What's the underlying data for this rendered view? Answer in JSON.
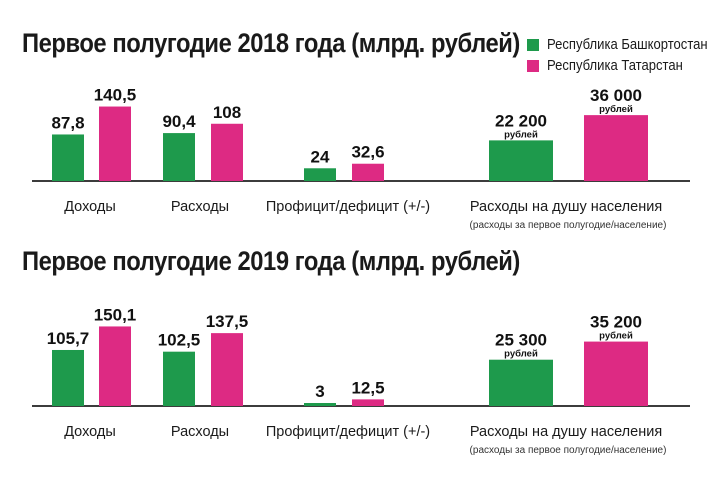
{
  "colors": {
    "bashkortostan": "#1e9a4c",
    "tatarstan": "#dd2a83",
    "axis": "#3c3c3c"
  },
  "legend": [
    {
      "label": "Республика Башкортостан",
      "color": "#1e9a4c"
    },
    {
      "label": "Республика Татарстан",
      "color": "#dd2a83"
    }
  ],
  "chart_data": [
    {
      "type": "bar",
      "title": "Первое полугодие 2018 года (млрд. рублей)",
      "categories": [
        "Доходы",
        "Расходы",
        "Профицит/дефицит (+/-)",
        "Расходы на душу населения"
      ],
      "category_notes": [
        "",
        "",
        "",
        "(расходы за первое полугодие/население)"
      ],
      "series": [
        {
          "name": "Республика Башкортостан",
          "values": [
            87.8,
            90.4,
            24,
            22200
          ],
          "labels": [
            "87,8",
            "90,4",
            "24",
            "22 200"
          ],
          "units": [
            "",
            "",
            "",
            "рублей"
          ]
        },
        {
          "name": "Республика Татарстан",
          "values": [
            140.5,
            108,
            32.6,
            36000
          ],
          "labels": [
            "140,5",
            "108",
            "32,6",
            "36 000"
          ],
          "units": [
            "",
            "",
            "",
            "рублей"
          ]
        }
      ]
    },
    {
      "type": "bar",
      "title": "Первое полугодие 2019 года (млрд. рублей)",
      "categories": [
        "Доходы",
        "Расходы",
        "Профицит/дефицит (+/-)",
        "Расходы на душу населения"
      ],
      "category_notes": [
        "",
        "",
        "",
        "(расходы за первое полугодие/население)"
      ],
      "series": [
        {
          "name": "Республика Башкортостан",
          "values": [
            105.7,
            102.5,
            3,
            25300
          ],
          "labels": [
            "105,7",
            "102,5",
            "3",
            "25 300"
          ],
          "units": [
            "",
            "",
            "",
            "рублей"
          ]
        },
        {
          "name": "Республика Татарстан",
          "values": [
            150.1,
            137.5,
            12.5,
            35200
          ],
          "labels": [
            "150,1",
            "137,5",
            "12,5",
            "35 200"
          ],
          "units": [
            "",
            "",
            "",
            "рублей"
          ]
        }
      ]
    }
  ]
}
